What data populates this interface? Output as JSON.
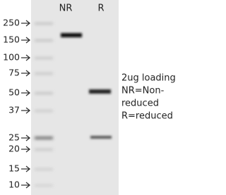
{
  "lanes": [
    "NR",
    "R"
  ],
  "markers": [
    "250",
    "150",
    "100",
    "75",
    "50",
    "37",
    "25",
    "20",
    "15",
    "10"
  ],
  "note": [
    "2ug loading",
    "NR=Non-",
    "reduced",
    "R=reduced"
  ]
}
